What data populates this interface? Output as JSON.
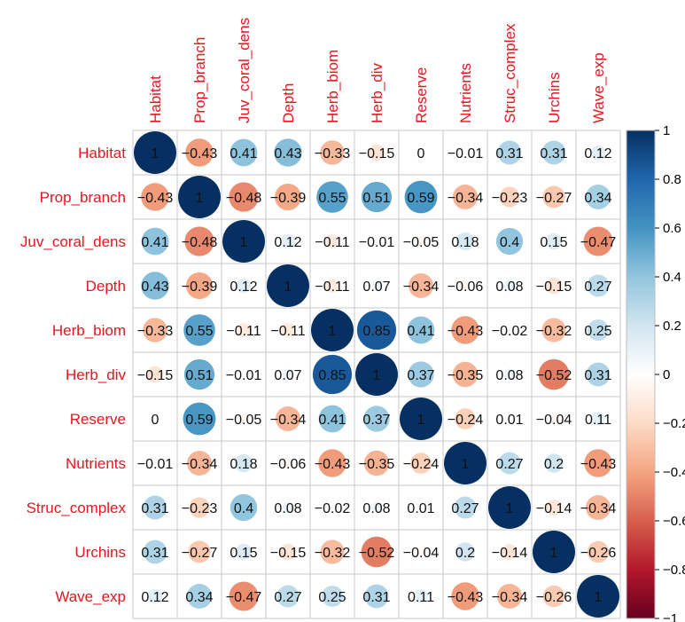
{
  "chart_data": {
    "type": "heatmap",
    "variables": [
      "Habitat",
      "Prop_branch",
      "Juv_coral_dens",
      "Depth",
      "Herb_biom",
      "Herb_div",
      "Reserve",
      "Nutrients",
      "Struc_complex",
      "Urchins",
      "Wave_exp"
    ],
    "matrix": [
      [
        1,
        -0.43,
        0.41,
        0.43,
        -0.33,
        -0.15,
        0,
        -0.01,
        0.31,
        0.31,
        0.12
      ],
      [
        -0.43,
        1,
        -0.48,
        -0.39,
        0.55,
        0.51,
        0.59,
        -0.34,
        -0.23,
        -0.27,
        0.34
      ],
      [
        0.41,
        -0.48,
        1,
        0.12,
        -0.11,
        -0.01,
        -0.05,
        0.18,
        0.4,
        0.15,
        -0.47
      ],
      [
        0.43,
        -0.39,
        0.12,
        1,
        -0.11,
        0.07,
        -0.34,
        -0.06,
        0.08,
        -0.15,
        0.27
      ],
      [
        -0.33,
        0.55,
        -0.11,
        -0.11,
        1,
        0.85,
        0.41,
        -0.43,
        -0.02,
        -0.32,
        0.25
      ],
      [
        -0.15,
        0.51,
        -0.01,
        0.07,
        0.85,
        1,
        0.37,
        -0.35,
        0.08,
        -0.52,
        0.31
      ],
      [
        0,
        0.59,
        -0.05,
        -0.34,
        0.41,
        0.37,
        1,
        -0.24,
        0.01,
        -0.04,
        0.11
      ],
      [
        -0.01,
        -0.34,
        0.18,
        -0.06,
        -0.43,
        -0.35,
        -0.24,
        1,
        0.27,
        0.2,
        -0.43
      ],
      [
        0.31,
        -0.23,
        0.4,
        0.08,
        -0.02,
        0.08,
        0.01,
        0.27,
        1,
        -0.14,
        -0.34
      ],
      [
        0.31,
        -0.27,
        0.15,
        -0.15,
        -0.32,
        -0.52,
        -0.04,
        0.2,
        -0.14,
        1,
        -0.26
      ],
      [
        0.12,
        0.34,
        -0.47,
        0.27,
        0.25,
        0.31,
        0.11,
        -0.43,
        -0.34,
        -0.26,
        1
      ]
    ],
    "colorbar": {
      "ticks": [
        1,
        0.8,
        0.6,
        0.4,
        0.2,
        0,
        -0.2,
        -0.4,
        -0.6,
        -0.8,
        -1
      ],
      "tick_labels": [
        "1",
        "0.8",
        "0.6",
        "0.4",
        "0.2",
        "0",
        "−0.2",
        "−0.4",
        "−0.6",
        "−0.8",
        "−1"
      ],
      "range": [
        -1,
        1
      ]
    },
    "colors": [
      "#67001f",
      "#b2182b",
      "#d6604d",
      "#f4a582",
      "#fddbc7",
      "#ffffff",
      "#d1e5f0",
      "#92c5de",
      "#4393c3",
      "#2166ac",
      "#053061"
    ],
    "label_color": "#e8141e",
    "grid": true,
    "legend": "right"
  }
}
